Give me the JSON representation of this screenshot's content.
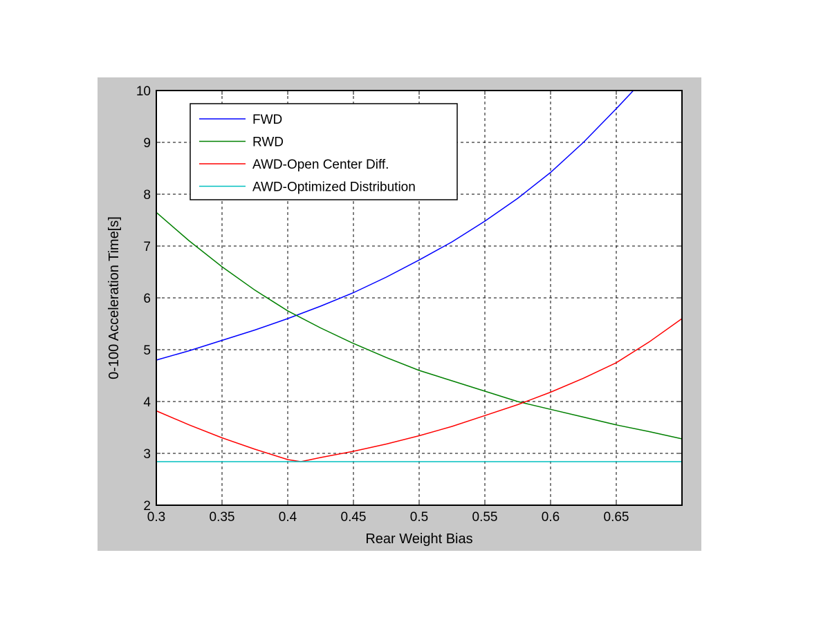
{
  "chart_data": {
    "type": "line",
    "xlabel": "Rear Weight Bias",
    "ylabel": "0-100 Acceleration Time[s]",
    "xlim": [
      0.3,
      0.7
    ],
    "ylim": [
      2,
      10
    ],
    "xticks": [
      0.3,
      0.35,
      0.4,
      0.45,
      0.5,
      0.55,
      0.6,
      0.65
    ],
    "xtick_labels": [
      "0.3",
      "0.35",
      "0.4",
      "0.45",
      "0.5",
      "0.55",
      "0.6",
      "0.65"
    ],
    "yticks": [
      2,
      3,
      4,
      5,
      6,
      7,
      8,
      9,
      10
    ],
    "ytick_labels": [
      "2",
      "3",
      "4",
      "5",
      "6",
      "7",
      "8",
      "9",
      "10"
    ],
    "grid": true,
    "legend_position": "top-left",
    "series": [
      {
        "name": "FWD",
        "color": "#0000ff",
        "x": [
          0.3,
          0.325,
          0.35,
          0.375,
          0.4,
          0.425,
          0.45,
          0.475,
          0.5,
          0.525,
          0.55,
          0.575,
          0.6,
          0.625,
          0.65,
          0.663
        ],
        "y": [
          4.8,
          4.98,
          5.18,
          5.38,
          5.6,
          5.84,
          6.1,
          6.4,
          6.73,
          7.08,
          7.48,
          7.92,
          8.42,
          9.0,
          9.65,
          10.0
        ]
      },
      {
        "name": "RWD",
        "color": "#008000",
        "x": [
          0.3,
          0.325,
          0.35,
          0.375,
          0.4,
          0.425,
          0.45,
          0.475,
          0.5,
          0.525,
          0.55,
          0.575,
          0.6,
          0.625,
          0.65,
          0.675,
          0.7
        ],
        "y": [
          7.65,
          7.1,
          6.6,
          6.15,
          5.75,
          5.42,
          5.12,
          4.85,
          4.6,
          4.4,
          4.2,
          4.0,
          3.85,
          3.7,
          3.55,
          3.42,
          3.28
        ]
      },
      {
        "name": "AWD-Open Center Diff.",
        "color": "#ff0000",
        "x": [
          0.3,
          0.325,
          0.35,
          0.375,
          0.4,
          0.41,
          0.425,
          0.45,
          0.475,
          0.5,
          0.525,
          0.55,
          0.575,
          0.6,
          0.625,
          0.65,
          0.675,
          0.7
        ],
        "y": [
          3.82,
          3.55,
          3.3,
          3.08,
          2.88,
          2.84,
          2.92,
          3.04,
          3.18,
          3.34,
          3.52,
          3.73,
          3.94,
          4.18,
          4.45,
          4.75,
          5.15,
          5.6
        ]
      },
      {
        "name": "AWD-Optimized Distribution",
        "color": "#00bfbf",
        "x": [
          0.3,
          0.7
        ],
        "y": [
          2.84,
          2.84
        ]
      }
    ]
  }
}
